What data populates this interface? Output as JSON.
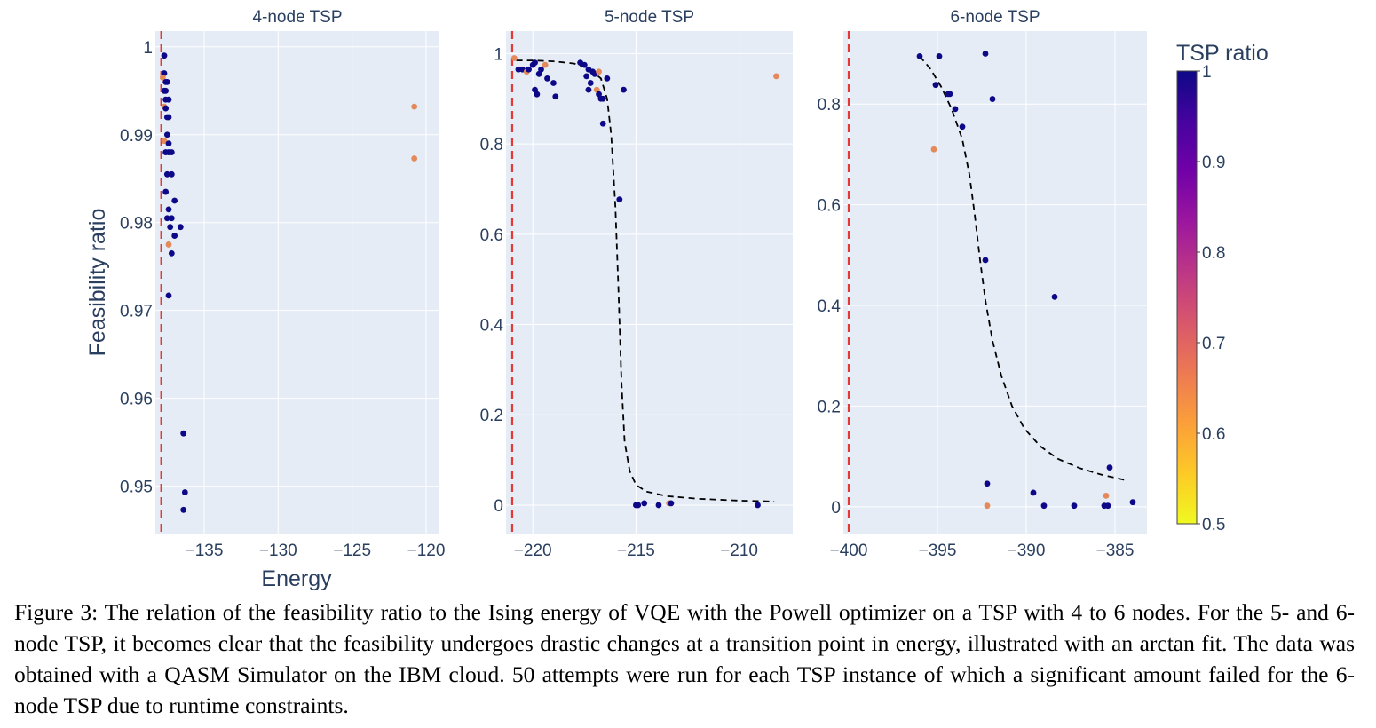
{
  "colorbar": {
    "title": "TSP ratio",
    "range": [
      0.5,
      1
    ],
    "ticks": [
      "1",
      "0.9",
      "0.8",
      "0.7",
      "0.6",
      "0.5"
    ],
    "colors": [
      "#0d0887",
      "#46039f",
      "#7201a8",
      "#9c179e",
      "#bd3786",
      "#d8576b",
      "#ed7953",
      "#fb9f3a",
      "#fdca26",
      "#f0f921"
    ]
  },
  "axes": {
    "ylabel": "Feasibility ratio",
    "xlabel": "Energy"
  },
  "colors": {
    "plot_bg": "#e5ecf6",
    "grid": "#ffffff",
    "marker_dark": "#0d0887",
    "marker_orange": "#e4895a",
    "min_line": "#e53935",
    "fit_line": "#000000"
  },
  "chart_data": [
    {
      "type": "scatter",
      "title": "4-node TSP",
      "xlim": [
        -138.3,
        -119.1
      ],
      "ylim": [
        0.9445,
        1.0018
      ],
      "xticks": [
        -135,
        -130,
        -125,
        -120
      ],
      "xtick_labels": [
        "−135",
        "−130",
        "−125",
        "−120"
      ],
      "yticks": [
        0.95,
        0.96,
        0.97,
        0.98,
        0.99,
        1
      ],
      "ytick_labels": [
        "0.95",
        "0.96",
        "0.97",
        "0.98",
        "0.99",
        "1"
      ],
      "min_energy_line": -137.9,
      "fit": [],
      "points": [
        {
          "x": -137.7,
          "y": 0.999,
          "c": 1
        },
        {
          "x": -137.7,
          "y": 0.997,
          "c": 1
        },
        {
          "x": -137.8,
          "y": 0.9965,
          "c": 0.65
        },
        {
          "x": -137.6,
          "y": 0.996,
          "c": 1
        },
        {
          "x": -137.5,
          "y": 0.996,
          "c": 1
        },
        {
          "x": -137.7,
          "y": 0.995,
          "c": 1
        },
        {
          "x": -137.6,
          "y": 0.995,
          "c": 1
        },
        {
          "x": -137.6,
          "y": 0.994,
          "c": 1
        },
        {
          "x": -137.4,
          "y": 0.994,
          "c": 1
        },
        {
          "x": -137.7,
          "y": 0.9932,
          "c": 0.65
        },
        {
          "x": -137.6,
          "y": 0.993,
          "c": 1
        },
        {
          "x": -137.5,
          "y": 0.992,
          "c": 1
        },
        {
          "x": -137.4,
          "y": 0.992,
          "c": 1
        },
        {
          "x": -137.5,
          "y": 0.99,
          "c": 1
        },
        {
          "x": -137.7,
          "y": 0.9893,
          "c": 0.65
        },
        {
          "x": -137.4,
          "y": 0.989,
          "c": 1
        },
        {
          "x": -137.6,
          "y": 0.988,
          "c": 1
        },
        {
          "x": -137.4,
          "y": 0.988,
          "c": 1
        },
        {
          "x": -137.2,
          "y": 0.988,
          "c": 1
        },
        {
          "x": -137.5,
          "y": 0.9855,
          "c": 1
        },
        {
          "x": -137.2,
          "y": 0.9855,
          "c": 1
        },
        {
          "x": -137.6,
          "y": 0.9835,
          "c": 1
        },
        {
          "x": -137.0,
          "y": 0.9825,
          "c": 1
        },
        {
          "x": -137.4,
          "y": 0.9815,
          "c": 1
        },
        {
          "x": -137.5,
          "y": 0.9805,
          "c": 1
        },
        {
          "x": -137.2,
          "y": 0.9805,
          "c": 1
        },
        {
          "x": -136.6,
          "y": 0.9795,
          "c": 1
        },
        {
          "x": -137.3,
          "y": 0.9795,
          "c": 1
        },
        {
          "x": -137.0,
          "y": 0.9785,
          "c": 1
        },
        {
          "x": -137.4,
          "y": 0.9775,
          "c": 0.65
        },
        {
          "x": -137.2,
          "y": 0.9765,
          "c": 1
        },
        {
          "x": -137.4,
          "y": 0.9717,
          "c": 1
        },
        {
          "x": -136.4,
          "y": 0.956,
          "c": 1
        },
        {
          "x": -136.3,
          "y": 0.9493,
          "c": 1
        },
        {
          "x": -136.4,
          "y": 0.9473,
          "c": 1
        },
        {
          "x": -120.8,
          "y": 0.9932,
          "c": 0.65
        },
        {
          "x": -120.8,
          "y": 0.9873,
          "c": 0.65
        }
      ]
    },
    {
      "type": "scatter",
      "title": "5-node TSP",
      "xlim": [
        -221.3,
        -207.4
      ],
      "ylim": [
        -0.065,
        1.05
      ],
      "xticks": [
        -220,
        -215,
        -210
      ],
      "xtick_labels": [
        "−220",
        "−215",
        "−210"
      ],
      "yticks": [
        0,
        0.2,
        0.4,
        0.6,
        0.8,
        1
      ],
      "ytick_labels": [
        "0",
        "0.2",
        "0.4",
        "0.6",
        "0.8",
        "1"
      ],
      "min_energy_line": -221.0,
      "fit": [
        [
          -220.8,
          0.985
        ],
        [
          -220,
          0.985
        ],
        [
          -219,
          0.983
        ],
        [
          -218,
          0.978
        ],
        [
          -217.3,
          0.968
        ],
        [
          -216.7,
          0.945
        ],
        [
          -216.4,
          0.9
        ],
        [
          -216.2,
          0.82
        ],
        [
          -216.0,
          0.66
        ],
        [
          -215.85,
          0.48
        ],
        [
          -215.7,
          0.27
        ],
        [
          -215.55,
          0.14
        ],
        [
          -215.3,
          0.075
        ],
        [
          -215.0,
          0.045
        ],
        [
          -214.5,
          0.03
        ],
        [
          -213.5,
          0.02
        ],
        [
          -212,
          0.014
        ],
        [
          -210,
          0.01
        ],
        [
          -208.3,
          0.008
        ]
      ],
      "points": [
        {
          "x": -220.9,
          "y": 0.99,
          "c": 0.65
        },
        {
          "x": -220.7,
          "y": 0.965,
          "c": 1
        },
        {
          "x": -220.5,
          "y": 0.965,
          "c": 1
        },
        {
          "x": -220.3,
          "y": 0.96,
          "c": 0.65
        },
        {
          "x": -220.2,
          "y": 0.965,
          "c": 1
        },
        {
          "x": -220.0,
          "y": 0.975,
          "c": 1
        },
        {
          "x": -219.9,
          "y": 0.98,
          "c": 1
        },
        {
          "x": -219.7,
          "y": 0.955,
          "c": 1
        },
        {
          "x": -219.6,
          "y": 0.965,
          "c": 1
        },
        {
          "x": -219.4,
          "y": 0.975,
          "c": 0.65
        },
        {
          "x": -219.3,
          "y": 0.945,
          "c": 1
        },
        {
          "x": -219.9,
          "y": 0.92,
          "c": 1
        },
        {
          "x": -219.8,
          "y": 0.91,
          "c": 1
        },
        {
          "x": -219.0,
          "y": 0.935,
          "c": 1
        },
        {
          "x": -218.9,
          "y": 0.905,
          "c": 1
        },
        {
          "x": -217.7,
          "y": 0.98,
          "c": 1
        },
        {
          "x": -217.5,
          "y": 0.975,
          "c": 1
        },
        {
          "x": -217.3,
          "y": 0.965,
          "c": 1
        },
        {
          "x": -217.1,
          "y": 0.96,
          "c": 1
        },
        {
          "x": -217.0,
          "y": 0.955,
          "c": 1
        },
        {
          "x": -216.8,
          "y": 0.96,
          "c": 0.65
        },
        {
          "x": -217.4,
          "y": 0.95,
          "c": 1
        },
        {
          "x": -217.2,
          "y": 0.935,
          "c": 1
        },
        {
          "x": -217.3,
          "y": 0.92,
          "c": 1
        },
        {
          "x": -216.9,
          "y": 0.92,
          "c": 0.65
        },
        {
          "x": -216.8,
          "y": 0.91,
          "c": 1
        },
        {
          "x": -216.6,
          "y": 0.9,
          "c": 1
        },
        {
          "x": -216.4,
          "y": 0.945,
          "c": 1
        },
        {
          "x": -216.7,
          "y": 0.9,
          "c": 1
        },
        {
          "x": -215.6,
          "y": 0.92,
          "c": 1
        },
        {
          "x": -216.6,
          "y": 0.845,
          "c": 1
        },
        {
          "x": -215.8,
          "y": 0.677,
          "c": 1
        },
        {
          "x": -215.0,
          "y": 0.0,
          "c": 1
        },
        {
          "x": -214.9,
          "y": 0.0,
          "c": 1
        },
        {
          "x": -214.6,
          "y": 0.004,
          "c": 1
        },
        {
          "x": -213.9,
          "y": 0.0,
          "c": 1
        },
        {
          "x": -213.4,
          "y": 0.004,
          "c": 0.65
        },
        {
          "x": -213.3,
          "y": 0.004,
          "c": 1
        },
        {
          "x": -209.1,
          "y": 0.0,
          "c": 1
        },
        {
          "x": -208.2,
          "y": 0.95,
          "c": 0.65
        }
      ]
    },
    {
      "type": "scatter",
      "title": "6-node TSP",
      "xlim": [
        -400.3,
        -383.2
      ],
      "ylim": [
        -0.055,
        0.945
      ],
      "xticks": [
        -400,
        -395,
        -390,
        -385
      ],
      "xtick_labels": [
        "−400",
        "−395",
        "−390",
        "−385"
      ],
      "yticks": [
        0,
        0.2,
        0.4,
        0.6,
        0.8
      ],
      "ytick_labels": [
        "0",
        "0.2",
        "0.4",
        "0.6",
        "0.8"
      ],
      "min_energy_line": -400.0,
      "fit": [
        [
          -396,
          0.895
        ],
        [
          -395.4,
          0.87
        ],
        [
          -394.8,
          0.835
        ],
        [
          -394.2,
          0.79
        ],
        [
          -393.6,
          0.73
        ],
        [
          -393.2,
          0.66
        ],
        [
          -392.9,
          0.58
        ],
        [
          -392.6,
          0.49
        ],
        [
          -392.3,
          0.41
        ],
        [
          -391.9,
          0.33
        ],
        [
          -391.4,
          0.26
        ],
        [
          -390.8,
          0.2
        ],
        [
          -390.1,
          0.155
        ],
        [
          -389.2,
          0.12
        ],
        [
          -388.2,
          0.095
        ],
        [
          -387.0,
          0.077
        ],
        [
          -385.8,
          0.064
        ],
        [
          -384.3,
          0.052
        ]
      ],
      "points": [
        {
          "x": -396.0,
          "y": 0.895,
          "c": 1
        },
        {
          "x": -394.9,
          "y": 0.895,
          "c": 1
        },
        {
          "x": -392.3,
          "y": 0.9,
          "c": 1
        },
        {
          "x": -395.1,
          "y": 0.838,
          "c": 1
        },
        {
          "x": -394.4,
          "y": 0.82,
          "c": 1
        },
        {
          "x": -394.3,
          "y": 0.82,
          "c": 1
        },
        {
          "x": -391.9,
          "y": 0.81,
          "c": 1
        },
        {
          "x": -394.0,
          "y": 0.79,
          "c": 1
        },
        {
          "x": -393.6,
          "y": 0.755,
          "c": 1
        },
        {
          "x": -395.2,
          "y": 0.71,
          "c": 0.65
        },
        {
          "x": -392.3,
          "y": 0.49,
          "c": 1
        },
        {
          "x": -388.4,
          "y": 0.417,
          "c": 1
        },
        {
          "x": -392.2,
          "y": 0.046,
          "c": 1
        },
        {
          "x": -392.2,
          "y": 0.002,
          "c": 0.65
        },
        {
          "x": -389.6,
          "y": 0.028,
          "c": 1
        },
        {
          "x": -389.0,
          "y": 0.002,
          "c": 1
        },
        {
          "x": -387.3,
          "y": 0.002,
          "c": 1
        },
        {
          "x": -385.6,
          "y": 0.002,
          "c": 1
        },
        {
          "x": -385.4,
          "y": 0.002,
          "c": 1
        },
        {
          "x": -385.5,
          "y": 0.022,
          "c": 0.65
        },
        {
          "x": -385.3,
          "y": 0.078,
          "c": 1
        },
        {
          "x": -384.0,
          "y": 0.009,
          "c": 1
        }
      ]
    }
  ],
  "caption": "Figure 3: The relation of the feasibility ratio to the Ising energy of VQE with the Powell optimizer on a TSP with 4 to 6 nodes. For the 5- and 6-node TSP, it becomes clear that the feasibility undergoes drastic changes at a transition point in energy, illustrated with an arctan fit. The data was obtained with a QASM Simulator on the IBM cloud. 50 attempts were run for each TSP instance of which a significant amount failed for the 6-node TSP due to runtime constraints."
}
